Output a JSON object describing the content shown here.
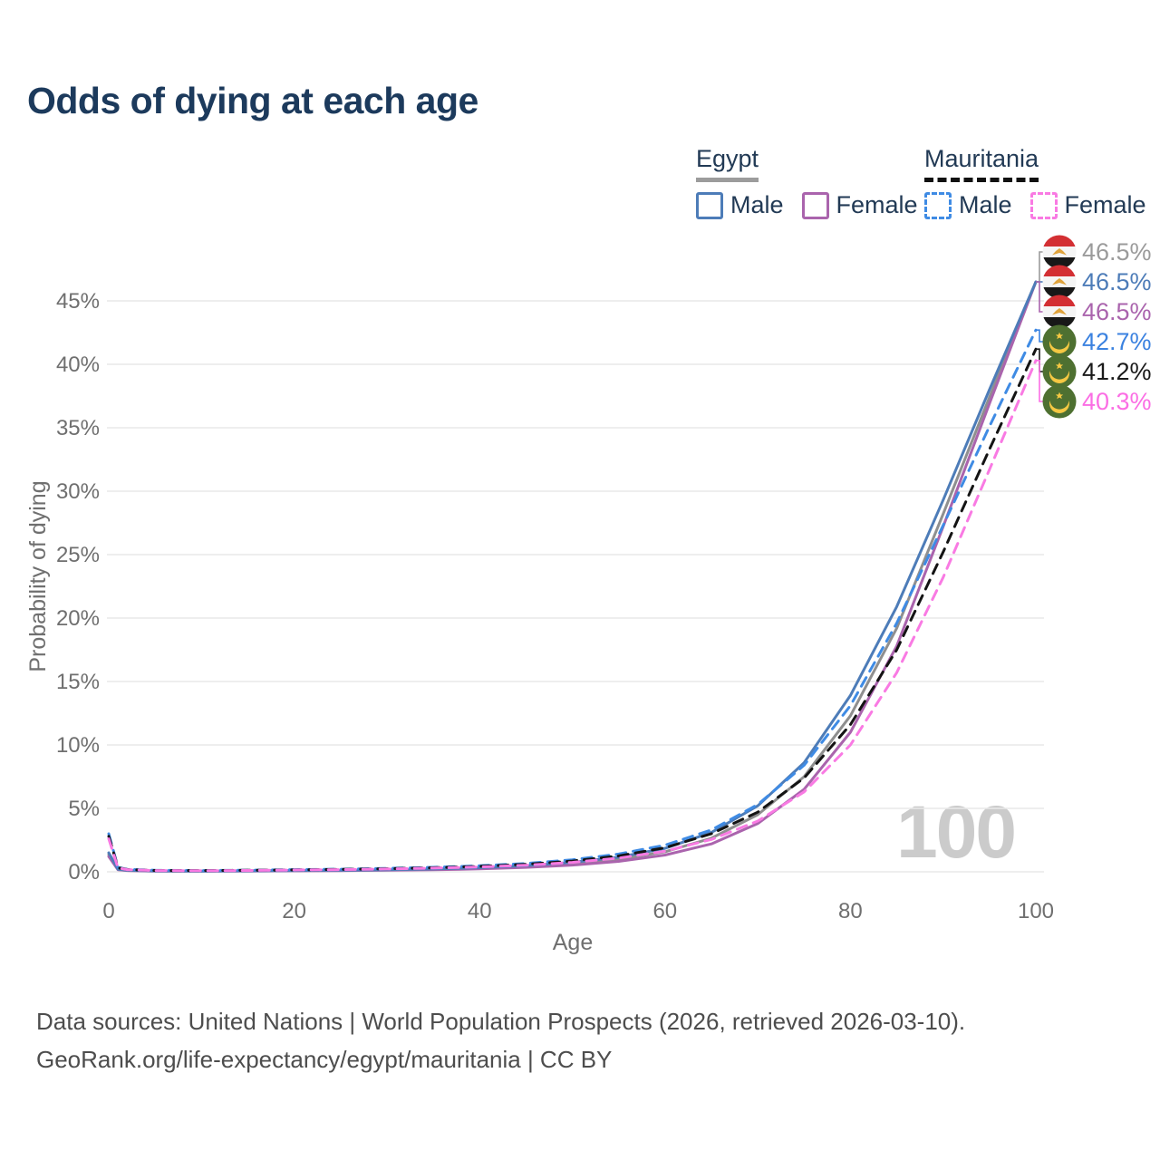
{
  "title": "Odds of dying at each age",
  "legend": {
    "egypt": {
      "label": "Egypt",
      "male": "Male",
      "female": "Female"
    },
    "mauritania": {
      "label": "Mauritania",
      "male": "Male",
      "female": "Female"
    }
  },
  "axes": {
    "x_label": "Age",
    "y_label": "Probability of dying"
  },
  "watermark": "100",
  "footer": {
    "line1": "Data sources: United Nations | World Population Prospects (2026, retrieved 2026-03-10).",
    "line2": "GeoRank.org/life-expectancy/egypt/mauritania | CC BY"
  },
  "end_labels": [
    {
      "flag": "egypt-flag-icon",
      "series": "Egypt all",
      "label": "46.5%",
      "value": 46.5,
      "color": "#9b9b9b"
    },
    {
      "flag": "egypt-flag-icon",
      "series": "Egypt male",
      "label": "46.5%",
      "value": 46.5,
      "color": "#4d7cb8"
    },
    {
      "flag": "egypt-flag-icon",
      "series": "Egypt female",
      "label": "46.5%",
      "value": 46.5,
      "color": "#aa64ad"
    },
    {
      "flag": "mauritania-flag-icon",
      "series": "Mauritania male",
      "label": "42.7%",
      "value": 42.7,
      "color": "#3b82e0"
    },
    {
      "flag": "mauritania-flag-icon",
      "series": "Mauritania all",
      "label": "41.2%",
      "value": 41.2,
      "color": "#1a1a1a"
    },
    {
      "flag": "mauritania-flag-icon",
      "series": "Mauritania female",
      "label": "40.3%",
      "value": 40.3,
      "color": "#fb6ee4"
    }
  ],
  "chart_data": {
    "type": "line",
    "title": "Odds of dying at each age",
    "xlabel": "Age",
    "ylabel": "Probability of dying",
    "xlim": [
      0,
      100
    ],
    "ylim": [
      0,
      46.5
    ],
    "x_ticks": [
      0,
      20,
      40,
      60,
      80,
      100
    ],
    "y_ticks": [
      0,
      5,
      10,
      15,
      20,
      25,
      30,
      35,
      40,
      45
    ],
    "y_tick_suffix": "%",
    "grid": "horizontal",
    "legend_position": "top-right",
    "x": [
      0,
      1,
      2,
      5,
      10,
      15,
      20,
      25,
      30,
      35,
      40,
      45,
      50,
      55,
      60,
      65,
      70,
      75,
      80,
      85,
      90,
      95,
      100
    ],
    "series": [
      {
        "name": "Egypt all",
        "country": "Egypt",
        "sex": "all",
        "style": "solid",
        "color": "#8f8f8f",
        "values": [
          1.35,
          0.18,
          0.11,
          0.06,
          0.055,
          0.07,
          0.09,
          0.11,
          0.14,
          0.19,
          0.27,
          0.41,
          0.63,
          0.98,
          1.58,
          2.65,
          4.5,
          7.5,
          12.3,
          19.2,
          28.2,
          37.4,
          46.5
        ]
      },
      {
        "name": "Egypt female",
        "country": "Egypt",
        "sex": "female",
        "style": "solid",
        "color": "#aa64ad",
        "values": [
          1.2,
          0.16,
          0.1,
          0.055,
          0.05,
          0.06,
          0.08,
          0.09,
          0.12,
          0.16,
          0.23,
          0.35,
          0.53,
          0.82,
          1.32,
          2.2,
          3.8,
          6.5,
          11.0,
          17.8,
          27.2,
          36.9,
          46.5
        ]
      },
      {
        "name": "Egypt male",
        "country": "Egypt",
        "sex": "male",
        "style": "solid",
        "color": "#4d7cb8",
        "values": [
          1.5,
          0.2,
          0.12,
          0.07,
          0.06,
          0.08,
          0.1,
          0.12,
          0.16,
          0.22,
          0.32,
          0.48,
          0.75,
          1.15,
          1.85,
          3.1,
          5.2,
          8.6,
          13.9,
          20.9,
          29.3,
          38.0,
          46.5
        ]
      },
      {
        "name": "Mauritania male",
        "country": "Mauritania",
        "sex": "male",
        "style": "dashed",
        "color": "#3f8be4",
        "values": [
          3.0,
          0.35,
          0.2,
          0.12,
          0.1,
          0.13,
          0.17,
          0.21,
          0.27,
          0.36,
          0.48,
          0.66,
          0.95,
          1.4,
          2.1,
          3.3,
          5.3,
          8.4,
          13.1,
          19.6,
          27.3,
          35.1,
          42.7
        ]
      },
      {
        "name": "Mauritania all",
        "country": "Mauritania",
        "sex": "all",
        "style": "dashed",
        "color": "#141414",
        "values": [
          2.8,
          0.32,
          0.18,
          0.11,
          0.09,
          0.12,
          0.15,
          0.19,
          0.24,
          0.32,
          0.43,
          0.59,
          0.85,
          1.25,
          1.9,
          3.0,
          4.7,
          7.4,
          11.6,
          17.5,
          25.2,
          33.3,
          41.2
        ]
      },
      {
        "name": "Mauritania female",
        "country": "Mauritania",
        "sex": "female",
        "style": "dashed",
        "color": "#f97ae3",
        "values": [
          2.6,
          0.3,
          0.17,
          0.1,
          0.085,
          0.11,
          0.14,
          0.17,
          0.22,
          0.29,
          0.38,
          0.52,
          0.74,
          1.08,
          1.62,
          2.55,
          4.0,
          6.3,
          10.0,
          15.7,
          23.2,
          31.7,
          40.3
        ]
      }
    ]
  }
}
